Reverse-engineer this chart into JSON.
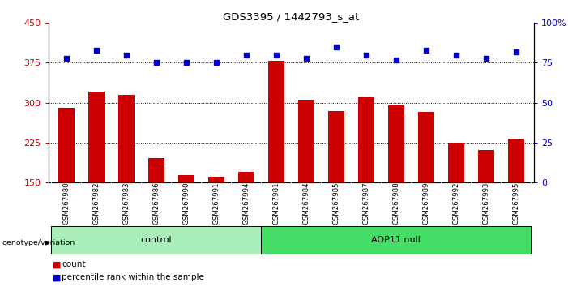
{
  "title": "GDS3395 / 1442793_s_at",
  "samples": [
    "GSM267980",
    "GSM267982",
    "GSM267983",
    "GSM267986",
    "GSM267990",
    "GSM267991",
    "GSM267994",
    "GSM267981",
    "GSM267984",
    "GSM267985",
    "GSM267987",
    "GSM267988",
    "GSM267989",
    "GSM267992",
    "GSM267993",
    "GSM267995"
  ],
  "counts": [
    290,
    320,
    315,
    195,
    163,
    160,
    170,
    378,
    305,
    284,
    310,
    294,
    283,
    225,
    210,
    232
  ],
  "percentile_ranks": [
    78,
    83,
    80,
    75,
    75,
    75,
    80,
    80,
    78,
    85,
    80,
    77,
    83,
    80,
    78,
    82
  ],
  "control_count": 7,
  "bar_color": "#CC0000",
  "dot_color": "#0000CC",
  "ylim_left": [
    150,
    450
  ],
  "ylim_right": [
    0,
    100
  ],
  "yticks_left": [
    150,
    225,
    300,
    375,
    450
  ],
  "yticks_right": [
    0,
    25,
    50,
    75,
    100
  ],
  "hlines": [
    225,
    300,
    375
  ],
  "background_color": "#FFFFFF",
  "ctrl_color": "#AAEEBB",
  "aqp_color": "#44DD66",
  "legend_count_label": "count",
  "legend_pct_label": "percentile rank within the sample",
  "bar_width": 0.55
}
